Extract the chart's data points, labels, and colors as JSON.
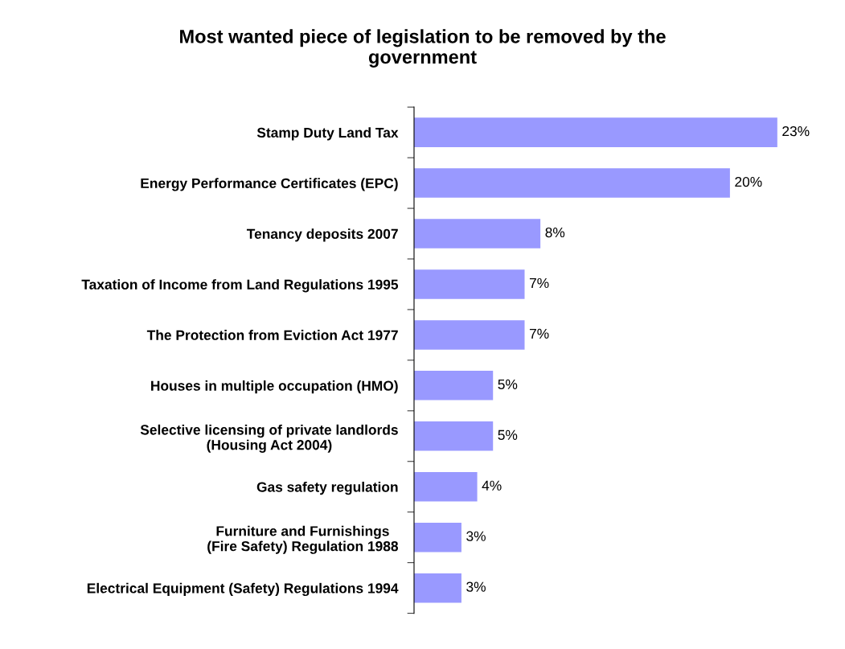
{
  "chart_data": {
    "type": "bar",
    "orientation": "horizontal",
    "title": "Most wanted piece of legislation to be removed by the\ngovernment",
    "categories": [
      "Stamp Duty Land Tax",
      "Energy Performance Certificates (EPC)",
      "Tenancy deposits 2007",
      "Taxation of Income from Land Regulations 1995",
      "The Protection from Eviction Act 1977",
      "Houses in multiple occupation (HMO)",
      "Selective licensing of private landlords\n(Housing Act 2004)",
      "Gas safety regulation",
      "Furniture and Furnishings\n(Fire Safety) Regulation 1988",
      "Electrical Equipment (Safety) Regulations 1994"
    ],
    "values": [
      23,
      20,
      8,
      7,
      7,
      5,
      5,
      4,
      3,
      3
    ],
    "color": "#9999ff",
    "data_labels": true,
    "value_labels": [
      "23%",
      "20%",
      "8%",
      "7%",
      "7%",
      "5%",
      "5%",
      "4%",
      "3%",
      "3%"
    ],
    "tick_labels": "y",
    "grid": false
  }
}
